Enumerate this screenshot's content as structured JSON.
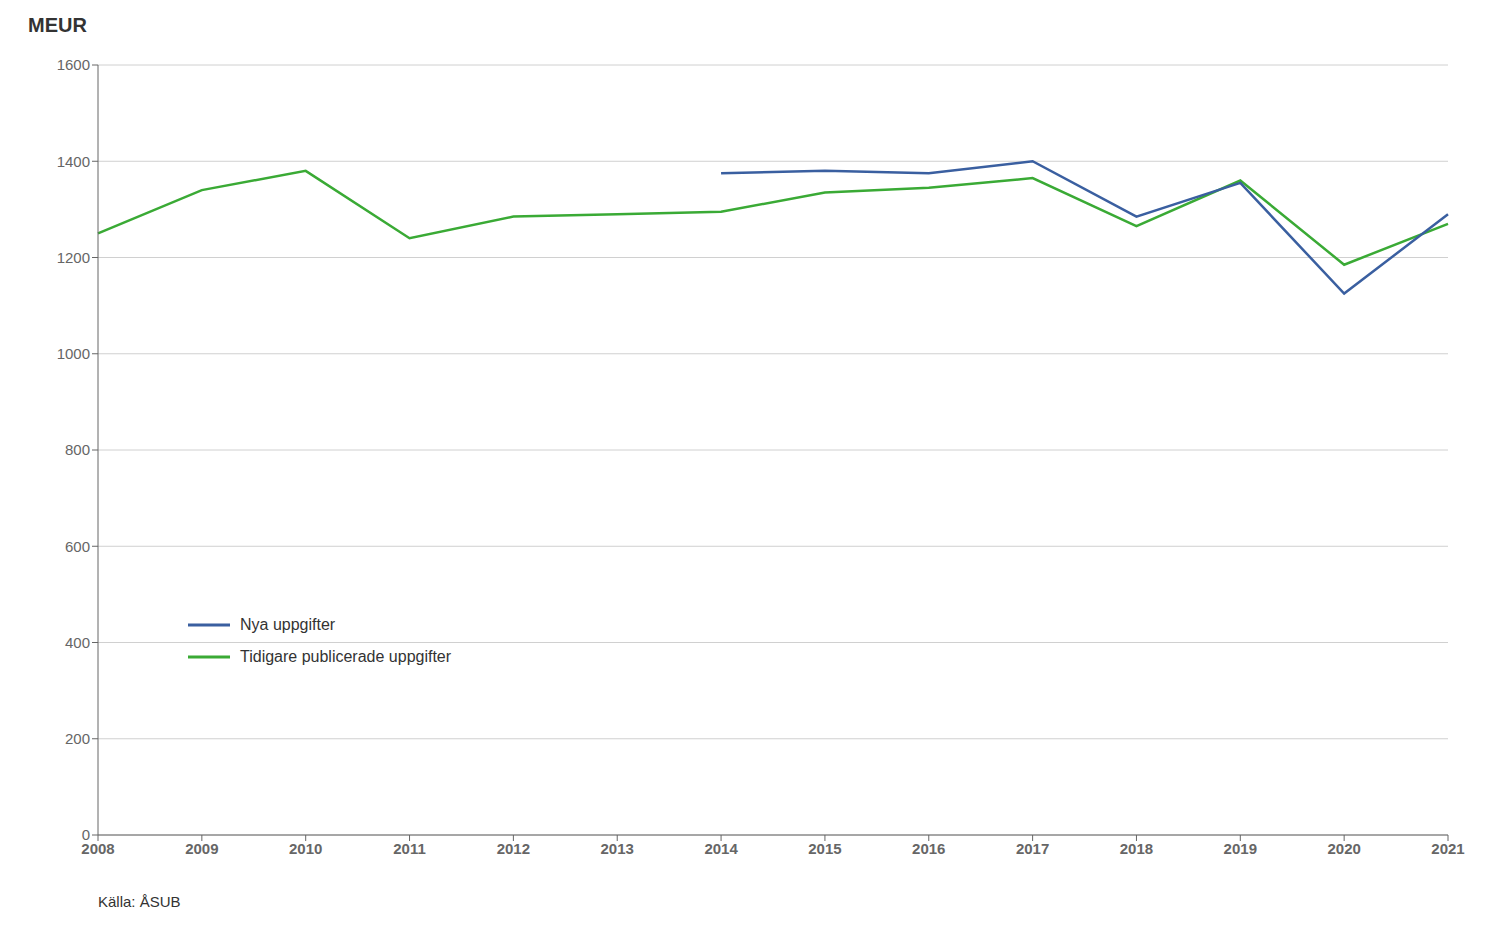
{
  "chart_data": {
    "type": "line",
    "y_label": "MEUR",
    "annotations": [
      "Källa: ÅSUB"
    ],
    "categories": [
      "2008",
      "2009",
      "2010",
      "2011",
      "2012",
      "2013",
      "2014",
      "2015",
      "2016",
      "2017",
      "2018",
      "2019",
      "2020",
      "2021"
    ],
    "series": [
      {
        "name": "Nya uppgifter",
        "color": "#3a5fa0",
        "values": [
          null,
          null,
          null,
          null,
          null,
          null,
          1375,
          1380,
          1375,
          1400,
          1285,
          1355,
          1125,
          1290
        ]
      },
      {
        "name": "Tidigare publicerade uppgifter",
        "color": "#3aaa35",
        "values": [
          1250,
          1340,
          1380,
          1240,
          1285,
          1290,
          1295,
          1335,
          1345,
          1365,
          1265,
          1360,
          1185,
          1270
        ]
      }
    ],
    "ylim": [
      0,
      1600
    ],
    "yticks": [
      0,
      200,
      400,
      600,
      800,
      1000,
      1200,
      1400,
      1600
    ],
    "grid": true,
    "legend": "lower left"
  }
}
